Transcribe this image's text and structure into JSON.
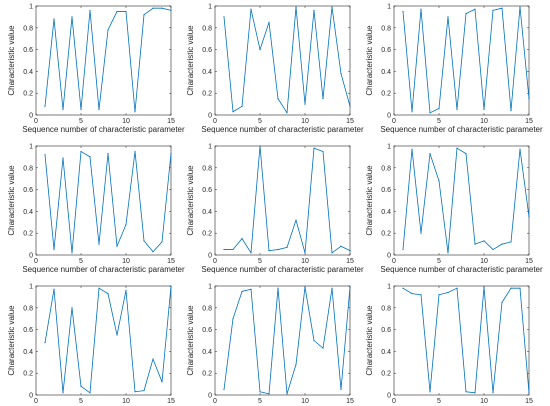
{
  "chart_data": [
    {
      "type": "line",
      "xlabel": "Sequence number of characteristic parameter",
      "ylabel": "Characteristic value",
      "xlim": [
        0,
        15
      ],
      "ylim": [
        0,
        1
      ],
      "xticks": [
        0,
        5,
        10,
        15
      ],
      "yticks": [
        0,
        0.2,
        0.4,
        0.6,
        0.8,
        1
      ],
      "x": [
        1,
        2,
        3,
        4,
        5,
        6,
        7,
        8,
        9,
        10,
        11,
        12,
        13,
        14,
        15
      ],
      "series": [
        {
          "values": [
            0.08,
            0.88,
            0.05,
            0.9,
            0.05,
            0.96,
            0.05,
            0.78,
            0.95,
            0.95,
            0.03,
            0.92,
            0.98,
            0.98,
            0.96
          ]
        }
      ]
    },
    {
      "type": "line",
      "xlabel": "Sequence number of characteristic parameter",
      "ylabel": "Characteristic value",
      "xlim": [
        0,
        15
      ],
      "ylim": [
        0,
        1
      ],
      "xticks": [
        0,
        5,
        10,
        15
      ],
      "yticks": [
        0,
        0.2,
        0.4,
        0.6,
        0.8,
        1
      ],
      "x": [
        1,
        2,
        3,
        4,
        5,
        6,
        7,
        8,
        9,
        10,
        11,
        12,
        13,
        14,
        15
      ],
      "series": [
        {
          "values": [
            0.9,
            0.03,
            0.08,
            0.97,
            0.6,
            0.85,
            0.15,
            0.02,
            0.99,
            0.1,
            0.96,
            0.15,
            0.99,
            0.38,
            0.08
          ]
        }
      ]
    },
    {
      "type": "line",
      "xlabel": "Sequence number of characteristic parameter",
      "ylabel": "Characteristic value",
      "xlim": [
        0,
        15
      ],
      "ylim": [
        0,
        1
      ],
      "xticks": [
        0,
        5,
        10,
        15
      ],
      "yticks": [
        0,
        0.2,
        0.4,
        0.6,
        0.8,
        1
      ],
      "x": [
        1,
        2,
        3,
        4,
        5,
        6,
        7,
        8,
        9,
        10,
        11,
        12,
        13,
        14,
        15
      ],
      "series": [
        {
          "values": [
            0.95,
            0.03,
            0.97,
            0.02,
            0.06,
            0.9,
            0.05,
            0.93,
            0.97,
            0.05,
            0.96,
            0.98,
            0.04,
            0.99,
            0.15
          ]
        }
      ]
    },
    {
      "type": "line",
      "xlabel": "Sequence number of characteristic parameter",
      "ylabel": "Characteristic value",
      "xlim": [
        0,
        15
      ],
      "ylim": [
        0,
        1
      ],
      "xticks": [
        0,
        5,
        10,
        15
      ],
      "yticks": [
        0,
        0.2,
        0.4,
        0.6,
        0.8,
        1
      ],
      "x": [
        1,
        2,
        3,
        4,
        5,
        6,
        7,
        8,
        9,
        10,
        11,
        12,
        13,
        14,
        15
      ],
      "series": [
        {
          "values": [
            0.92,
            0.05,
            0.89,
            0.02,
            0.95,
            0.9,
            0.1,
            0.93,
            0.08,
            0.28,
            0.95,
            0.13,
            0.03,
            0.12,
            0.93
          ]
        }
      ]
    },
    {
      "type": "line",
      "xlabel": "Sequence number of characteristic parameter",
      "ylabel": "Characteristic value",
      "xlim": [
        0,
        15
      ],
      "ylim": [
        0,
        1
      ],
      "xticks": [
        0,
        5,
        10,
        15
      ],
      "yticks": [
        0,
        0.2,
        0.4,
        0.6,
        0.8,
        1
      ],
      "x": [
        1,
        2,
        3,
        4,
        5,
        6,
        7,
        8,
        9,
        10,
        11,
        12,
        13,
        14,
        15
      ],
      "series": [
        {
          "values": [
            0.05,
            0.05,
            0.15,
            0.02,
            1.0,
            0.04,
            0.05,
            0.07,
            0.32,
            0.02,
            0.98,
            0.95,
            0.02,
            0.08,
            0.04
          ]
        }
      ]
    },
    {
      "type": "line",
      "xlabel": "Sequence number of characteristic parameter",
      "ylabel": "Characteristic value",
      "xlim": [
        0,
        15
      ],
      "ylim": [
        0,
        1
      ],
      "xticks": [
        0,
        5,
        10,
        15
      ],
      "yticks": [
        0,
        0.2,
        0.4,
        0.6,
        0.8,
        1
      ],
      "x": [
        1,
        2,
        3,
        4,
        5,
        6,
        7,
        8,
        9,
        10,
        11,
        12,
        13,
        14,
        15
      ],
      "series": [
        {
          "values": [
            0.05,
            0.97,
            0.2,
            0.93,
            0.68,
            0.02,
            0.98,
            0.93,
            0.1,
            0.13,
            0.05,
            0.1,
            0.12,
            0.97,
            0.35
          ]
        }
      ]
    },
    {
      "type": "line",
      "xlabel": "Sequence number of characteristic parameter",
      "ylabel": "Characteristic value",
      "xlim": [
        0,
        15
      ],
      "ylim": [
        0,
        1
      ],
      "xticks": [
        0,
        5,
        10,
        15
      ],
      "yticks": [
        0,
        0.2,
        0.4,
        0.6,
        0.8,
        1
      ],
      "x": [
        1,
        2,
        3,
        4,
        5,
        6,
        7,
        8,
        9,
        10,
        11,
        12,
        13,
        14,
        15
      ],
      "series": [
        {
          "values": [
            0.48,
            0.97,
            0.02,
            0.8,
            0.08,
            0.02,
            0.98,
            0.93,
            0.55,
            0.96,
            0.03,
            0.04,
            0.33,
            0.12,
            1.0
          ]
        }
      ]
    },
    {
      "type": "line",
      "xlabel": "Sequence number of characteristic parameter",
      "ylabel": "Characteristic value",
      "xlim": [
        0,
        15
      ],
      "ylim": [
        0,
        1
      ],
      "xticks": [
        0,
        5,
        10,
        15
      ],
      "yticks": [
        0,
        0.2,
        0.4,
        0.6,
        0.8,
        1
      ],
      "x": [
        1,
        2,
        3,
        4,
        5,
        6,
        7,
        8,
        9,
        10,
        11,
        12,
        13,
        14,
        15
      ],
      "series": [
        {
          "values": [
            0.05,
            0.7,
            0.95,
            0.97,
            0.03,
            0.01,
            0.98,
            0.01,
            0.28,
            0.99,
            0.5,
            0.43,
            0.98,
            0.05,
            0.99
          ]
        }
      ]
    },
    {
      "type": "line",
      "xlabel": "Sequence number of characteristic parameter",
      "ylabel": "Characteristic value",
      "xlim": [
        0,
        15
      ],
      "ylim": [
        0,
        1
      ],
      "xticks": [
        0,
        5,
        10,
        15
      ],
      "yticks": [
        0,
        0.2,
        0.4,
        0.6,
        0.8,
        1
      ],
      "x": [
        1,
        2,
        3,
        4,
        5,
        6,
        7,
        8,
        9,
        10,
        11,
        12,
        13,
        14,
        15
      ],
      "series": [
        {
          "values": [
            0.98,
            0.93,
            0.92,
            0.03,
            0.92,
            0.94,
            0.98,
            0.03,
            0.02,
            0.99,
            0.02,
            0.85,
            0.98,
            0.98,
            0.02
          ]
        }
      ]
    }
  ],
  "colors": {
    "line": "#0072BD",
    "axis": "#262626",
    "background": "#ffffff"
  }
}
